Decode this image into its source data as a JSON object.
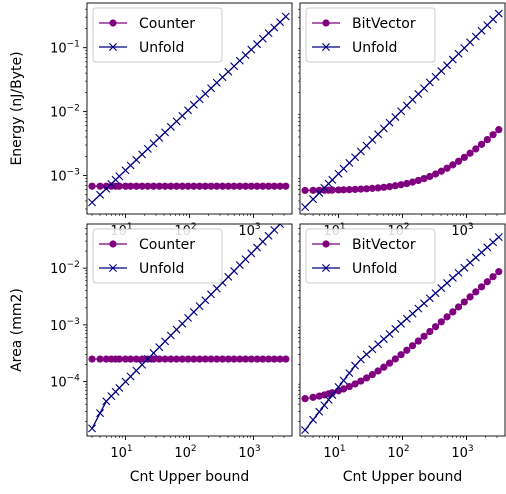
{
  "chart_data": [
    {
      "type": "line",
      "panel": "top-left",
      "xscale": "log",
      "yscale": "log",
      "xlim": [
        2.5,
        4000
      ],
      "ylim": [
        0.00025,
        0.5
      ],
      "xlabel": "",
      "ylabel": "Energy (nJ/Byte)",
      "x_ticks": [
        {
          "value": 10,
          "base": "10",
          "exp": "1"
        },
        {
          "value": 100,
          "base": "10",
          "exp": "2"
        },
        {
          "value": 1000,
          "base": "10",
          "exp": "3"
        }
      ],
      "y_ticks": [
        {
          "value": 0.001,
          "base": "10",
          "exp": "−3"
        },
        {
          "value": 0.01,
          "base": "10",
          "exp": "−2"
        },
        {
          "value": 0.1,
          "base": "10",
          "exp": "−1"
        }
      ],
      "legend": "upper-left",
      "series": [
        {
          "name": "Counter",
          "marker": "circle",
          "color": "#800080",
          "line": "const",
          "value": 0.00068
        },
        {
          "name": "Unfold",
          "marker": "x",
          "color": "#000080",
          "line": "power",
          "x0": 3,
          "y0": 0.00038,
          "slope": 0.96
        }
      ]
    },
    {
      "type": "line",
      "panel": "top-right",
      "xscale": "log",
      "yscale": "log",
      "xlim": [
        2.5,
        4000
      ],
      "ylim": [
        0.00025,
        0.5
      ],
      "xlabel": "",
      "ylabel": "",
      "x_ticks": [
        {
          "value": 10,
          "base": "10",
          "exp": "1"
        },
        {
          "value": 100,
          "base": "10",
          "exp": "2"
        },
        {
          "value": 1000,
          "base": "10",
          "exp": "3"
        }
      ],
      "y_ticks": [],
      "legend": "upper-left",
      "series": [
        {
          "name": "BitVector",
          "marker": "circle",
          "color": "#800080",
          "line": "affine",
          "a": 0.00058,
          "b": 1.45e-06
        },
        {
          "name": "Unfold",
          "marker": "x",
          "color": "#000080",
          "line": "power",
          "x0": 3,
          "y0": 0.00032,
          "slope": 1.0
        }
      ]
    },
    {
      "type": "line",
      "panel": "bottom-left",
      "xscale": "log",
      "yscale": "log",
      "xlim": [
        2.5,
        4000
      ],
      "ylim": [
        1.1e-05,
        0.06
      ],
      "xlabel": "Cnt Upper bound",
      "ylabel": "Area (mm2)",
      "x_ticks": [
        {
          "value": 10,
          "base": "10",
          "exp": "1"
        },
        {
          "value": 100,
          "base": "10",
          "exp": "2"
        },
        {
          "value": 1000,
          "base": "10",
          "exp": "3"
        }
      ],
      "y_ticks": [
        {
          "value": 0.0001,
          "base": "10",
          "exp": "−4"
        },
        {
          "value": 0.001,
          "base": "10",
          "exp": "−3"
        },
        {
          "value": 0.01,
          "base": "10",
          "exp": "−2"
        }
      ],
      "legend": "upper-left",
      "series": [
        {
          "name": "Counter",
          "marker": "circle",
          "color": "#800080",
          "line": "const",
          "value": 0.00025
        },
        {
          "name": "Unfold",
          "marker": "x",
          "color": "#000080",
          "line": "kinked",
          "x0": 3,
          "y0": 1.5e-05,
          "x1": 5,
          "y1": 4.5e-05,
          "slope": 1.15
        }
      ]
    },
    {
      "type": "line",
      "panel": "bottom-right",
      "xscale": "log",
      "yscale": "log",
      "xlim": [
        2.5,
        4000
      ],
      "ylim": [
        1.1e-05,
        0.06
      ],
      "xlabel": "Cnt Upper bound",
      "ylabel": "",
      "x_ticks": [
        {
          "value": 10,
          "base": "10",
          "exp": "1"
        },
        {
          "value": 100,
          "base": "10",
          "exp": "2"
        },
        {
          "value": 1000,
          "base": "10",
          "exp": "3"
        }
      ],
      "y_ticks": [],
      "legend": "upper-left",
      "series": [
        {
          "name": "BitVector",
          "marker": "circle",
          "color": "#800080",
          "line": "affine",
          "a": 4.2e-05,
          "b": 2.7e-06
        },
        {
          "name": "Unfold",
          "marker": "x",
          "color": "#000080",
          "line": "kinked",
          "x0": 3,
          "y0": 1.4e-05,
          "x1": 20,
          "y1": 0.00022,
          "slope": 1.0
        }
      ]
    }
  ]
}
